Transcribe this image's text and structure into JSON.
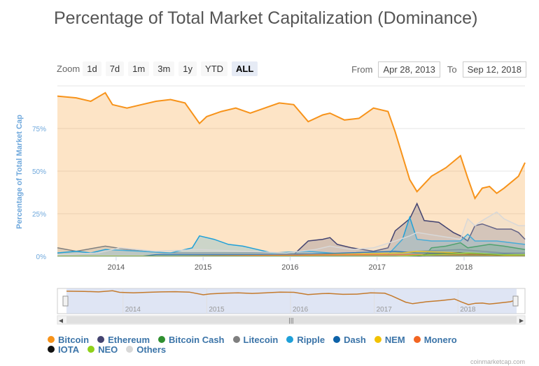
{
  "title": "Percentage of Total Market Capitalization (Dominance)",
  "zoom": {
    "label": "Zoom",
    "buttons": [
      "1d",
      "7d",
      "1m",
      "3m",
      "1y",
      "YTD",
      "ALL"
    ],
    "active": "ALL"
  },
  "range": {
    "from_label": "From",
    "from_value": "Apr 28, 2013",
    "to_label": "To",
    "to_value": "Sep 12, 2018"
  },
  "watermark": "coinmarketcap.com",
  "colors": {
    "Bitcoin": "#f7931a",
    "Ethereum": "#434370",
    "Bitcoin Cash": "#2f8f2f",
    "Litecoin": "#7f7f7f",
    "Ripple": "#1fa0d8",
    "Dash": "#0d62a8",
    "NEM": "#f2c200",
    "Monero": "#f26522",
    "IOTA": "#111111",
    "NEO": "#8fd11a",
    "Others": "#d8d8d8"
  },
  "chart_data": {
    "type": "area",
    "title": "Percentage of Total Market Capitalization (Dominance)",
    "ylabel": "Percentage of Total Market Cap",
    "ylim": [
      0,
      100
    ],
    "yticks": [
      "0%",
      "25%",
      "50%",
      "75%"
    ],
    "x_ticks": [
      "2014",
      "2015",
      "2016",
      "2017",
      "2018"
    ],
    "navigator_ticks": [
      "2014",
      "2015",
      "2016",
      "2017",
      "2018"
    ],
    "legend_position": "bottom",
    "series": [
      {
        "name": "Bitcoin",
        "points": [
          [
            "2013-05",
            94
          ],
          [
            "2013-07",
            93
          ],
          [
            "2013-09",
            91
          ],
          [
            "2013-11",
            96
          ],
          [
            "2013-12",
            89
          ],
          [
            "2014-02",
            87
          ],
          [
            "2014-04",
            89
          ],
          [
            "2014-06",
            91
          ],
          [
            "2014-08",
            92
          ],
          [
            "2014-10",
            90
          ],
          [
            "2014-12",
            78
          ],
          [
            "2015-01",
            82
          ],
          [
            "2015-03",
            85
          ],
          [
            "2015-05",
            87
          ],
          [
            "2015-07",
            84
          ],
          [
            "2015-09",
            87
          ],
          [
            "2015-11",
            90
          ],
          [
            "2016-01",
            89
          ],
          [
            "2016-03",
            79
          ],
          [
            "2016-05",
            83
          ],
          [
            "2016-06",
            84
          ],
          [
            "2016-08",
            80
          ],
          [
            "2016-10",
            81
          ],
          [
            "2016-12",
            87
          ],
          [
            "2017-02",
            85
          ],
          [
            "2017-03",
            73
          ],
          [
            "2017-05",
            45
          ],
          [
            "2017-06",
            38
          ],
          [
            "2017-08",
            47
          ],
          [
            "2017-10",
            52
          ],
          [
            "2017-12",
            59
          ],
          [
            "2018-01",
            46
          ],
          [
            "2018-02",
            34
          ],
          [
            "2018-03",
            40
          ],
          [
            "2018-04",
            41
          ],
          [
            "2018-05",
            37
          ],
          [
            "2018-06",
            40
          ],
          [
            "2018-08",
            47
          ],
          [
            "2018-09",
            55
          ]
        ]
      },
      {
        "name": "Ethereum",
        "points": [
          [
            "2013-05",
            0
          ],
          [
            "2015-08",
            0
          ],
          [
            "2016-01",
            1
          ],
          [
            "2016-03",
            9
          ],
          [
            "2016-05",
            10
          ],
          [
            "2016-06",
            11
          ],
          [
            "2016-07",
            7
          ],
          [
            "2016-09",
            5
          ],
          [
            "2016-12",
            3
          ],
          [
            "2017-02",
            5
          ],
          [
            "2017-03",
            15
          ],
          [
            "2017-05",
            22
          ],
          [
            "2017-06",
            31
          ],
          [
            "2017-07",
            21
          ],
          [
            "2017-09",
            20
          ],
          [
            "2017-11",
            14
          ],
          [
            "2017-12",
            12
          ],
          [
            "2018-01",
            9
          ],
          [
            "2018-02",
            18
          ],
          [
            "2018-03",
            19
          ],
          [
            "2018-05",
            16
          ],
          [
            "2018-07",
            16
          ],
          [
            "2018-08",
            14
          ],
          [
            "2018-09",
            10
          ]
        ]
      },
      {
        "name": "Bitcoin Cash",
        "points": [
          [
            "2013-05",
            0
          ],
          [
            "2017-07",
            0
          ],
          [
            "2017-08",
            5
          ],
          [
            "2017-10",
            6
          ],
          [
            "2017-12",
            8
          ],
          [
            "2018-01",
            5
          ],
          [
            "2018-04",
            7
          ],
          [
            "2018-06",
            6
          ],
          [
            "2018-09",
            4
          ]
        ]
      },
      {
        "name": "Litecoin",
        "points": [
          [
            "2013-05",
            5
          ],
          [
            "2013-07",
            3
          ],
          [
            "2013-11",
            6
          ],
          [
            "2014-02",
            4
          ],
          [
            "2014-07",
            2
          ],
          [
            "2015-06",
            2
          ],
          [
            "2015-10",
            2
          ],
          [
            "2016-06",
            1
          ],
          [
            "2017-03",
            2
          ],
          [
            "2017-06",
            3
          ],
          [
            "2017-12",
            4
          ],
          [
            "2018-06",
            2
          ],
          [
            "2018-09",
            2
          ]
        ]
      },
      {
        "name": "Ripple",
        "points": [
          [
            "2013-05",
            2
          ],
          [
            "2013-07",
            3
          ],
          [
            "2013-09",
            2
          ],
          [
            "2013-11",
            4
          ],
          [
            "2014-04",
            3
          ],
          [
            "2014-08",
            2
          ],
          [
            "2014-11",
            5
          ],
          [
            "2014-12",
            12
          ],
          [
            "2015-02",
            10
          ],
          [
            "2015-04",
            7
          ],
          [
            "2015-06",
            6
          ],
          [
            "2015-08",
            4
          ],
          [
            "2015-10",
            2
          ],
          [
            "2016-03",
            3
          ],
          [
            "2016-09",
            1
          ],
          [
            "2017-02",
            1
          ],
          [
            "2017-04",
            10
          ],
          [
            "2017-05",
            23
          ],
          [
            "2017-06",
            10
          ],
          [
            "2017-08",
            9
          ],
          [
            "2017-12",
            9
          ],
          [
            "2018-01",
            13
          ],
          [
            "2018-02",
            9
          ],
          [
            "2018-05",
            9
          ],
          [
            "2018-09",
            7
          ]
        ]
      },
      {
        "name": "Dash",
        "points": [
          [
            "2013-05",
            0
          ],
          [
            "2014-04",
            0
          ],
          [
            "2014-06",
            1
          ],
          [
            "2016-01",
            1
          ],
          [
            "2017-03",
            3
          ],
          [
            "2017-06",
            2
          ],
          [
            "2017-12",
            2
          ],
          [
            "2018-09",
            1
          ]
        ]
      },
      {
        "name": "NEM",
        "points": [
          [
            "2013-05",
            0
          ],
          [
            "2015-05",
            0
          ],
          [
            "2017-04",
            2
          ],
          [
            "2017-06",
            3
          ],
          [
            "2017-12",
            2
          ],
          [
            "2018-02",
            1
          ],
          [
            "2018-09",
            0
          ]
        ]
      },
      {
        "name": "Monero",
        "points": [
          [
            "2013-05",
            0
          ],
          [
            "2014-06",
            0
          ],
          [
            "2016-09",
            1
          ],
          [
            "2017-06",
            1
          ],
          [
            "2018-01",
            1
          ],
          [
            "2018-09",
            1
          ]
        ]
      },
      {
        "name": "IOTA",
        "points": [
          [
            "2013-05",
            0
          ],
          [
            "2017-06",
            0
          ],
          [
            "2017-07",
            1
          ],
          [
            "2017-12",
            2
          ],
          [
            "2018-05",
            1
          ],
          [
            "2018-09",
            1
          ]
        ]
      },
      {
        "name": "NEO",
        "points": [
          [
            "2013-05",
            0
          ],
          [
            "2017-03",
            0
          ],
          [
            "2017-08",
            1
          ],
          [
            "2018-01",
            2
          ],
          [
            "2018-06",
            1
          ],
          [
            "2018-09",
            1
          ]
        ]
      },
      {
        "name": "Others",
        "points": [
          [
            "2013-05",
            1
          ],
          [
            "2013-10",
            2
          ],
          [
            "2014-01",
            5
          ],
          [
            "2014-06",
            3
          ],
          [
            "2014-12",
            4
          ],
          [
            "2015-06",
            3
          ],
          [
            "2015-12",
            2
          ],
          [
            "2016-04",
            4
          ],
          [
            "2016-06",
            6
          ],
          [
            "2016-09",
            4
          ],
          [
            "2016-12",
            5
          ],
          [
            "2017-03",
            9
          ],
          [
            "2017-05",
            12
          ],
          [
            "2017-06",
            14
          ],
          [
            "2017-09",
            12
          ],
          [
            "2017-12",
            10
          ],
          [
            "2018-01",
            22
          ],
          [
            "2018-02",
            18
          ],
          [
            "2018-03",
            21
          ],
          [
            "2018-05",
            26
          ],
          [
            "2018-06",
            22
          ],
          [
            "2018-07",
            20
          ],
          [
            "2018-08",
            18
          ],
          [
            "2018-09",
            18
          ]
        ]
      }
    ],
    "navigator": {
      "series": "Bitcoin"
    }
  }
}
